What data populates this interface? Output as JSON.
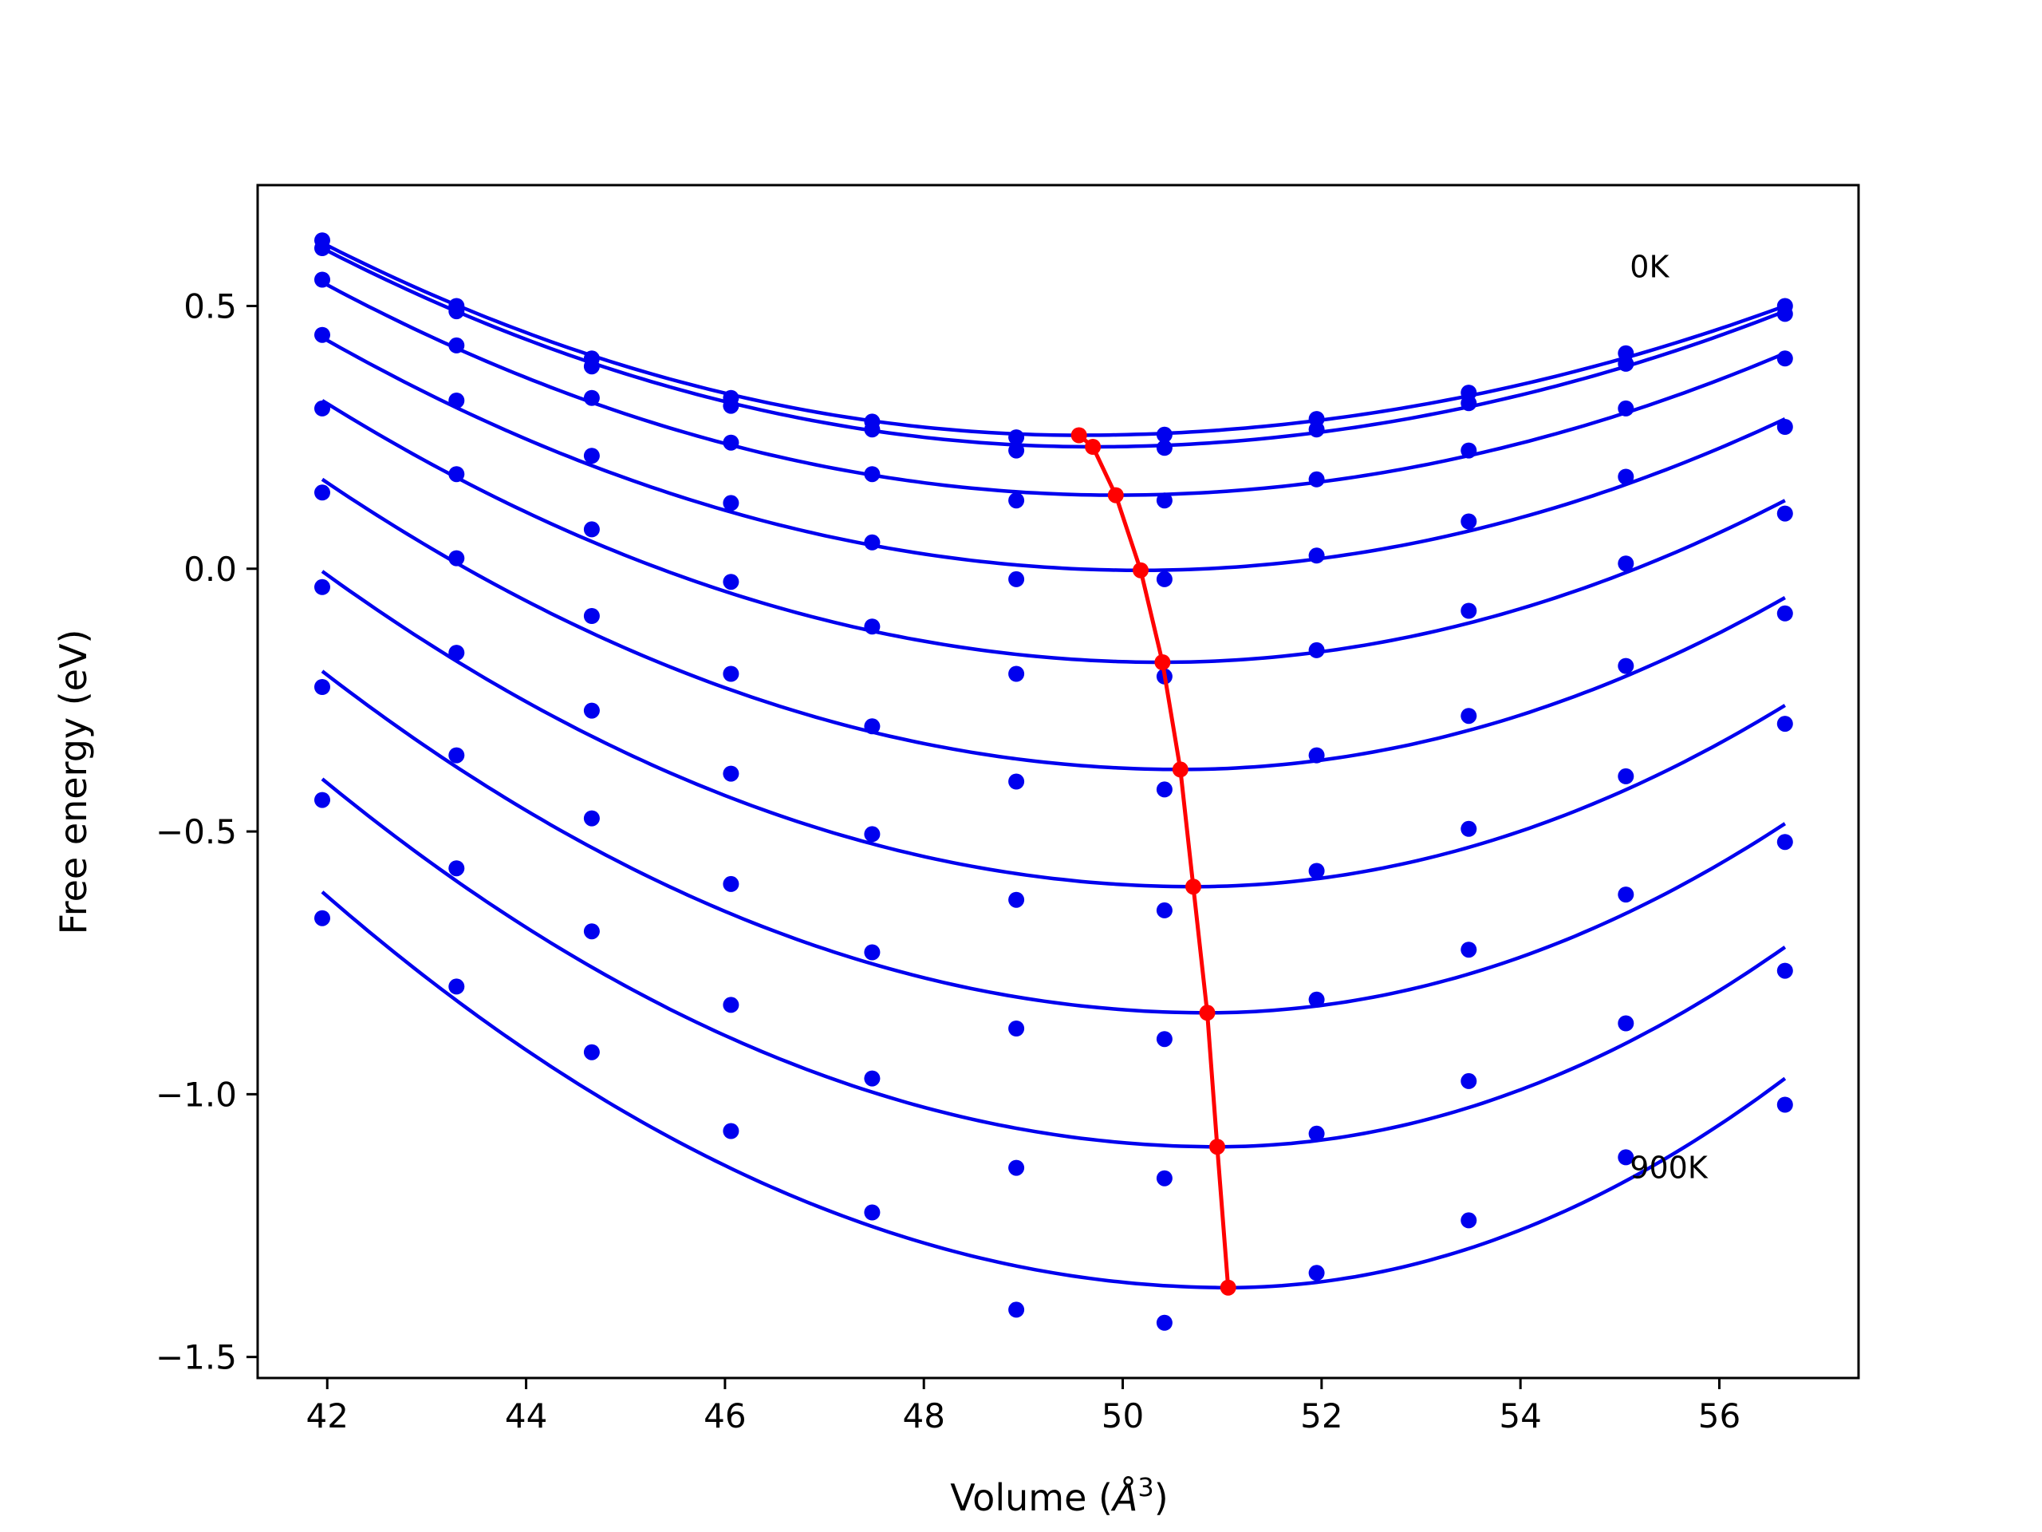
{
  "chart_data": {
    "type": "scatter",
    "title": "",
    "xlabel": "Volume (",
    "xlabel_symbol": "Å",
    "xlabel_exp": "3",
    "xlabel_close": ")",
    "ylabel": "Free energy (eV)",
    "xlim": [
      41.3,
      57.4
    ],
    "ylim": [
      -1.54,
      0.73
    ],
    "x_ticks": [
      42,
      44,
      46,
      48,
      50,
      52,
      54,
      56
    ],
    "x_tick_labels": [
      "42",
      "44",
      "46",
      "48",
      "50",
      "52",
      "54",
      "56"
    ],
    "y_ticks": [
      0.5,
      0.0,
      -0.5,
      -1.0,
      -1.5
    ],
    "y_tick_labels": [
      "0.5",
      "0.0",
      "−0.5",
      "−1.0",
      "−1.5"
    ],
    "grid": false,
    "colors": {
      "data": "#0000ee",
      "minima": "#ff0000"
    },
    "annotations": [
      {
        "text": "0K",
        "x": 55.1,
        "y": 0.555
      },
      {
        "text": "900K",
        "x": 55.1,
        "y": -1.16
      }
    ],
    "volumes": [
      41.95,
      43.3,
      44.66,
      46.06,
      47.48,
      48.93,
      50.42,
      51.95,
      53.48,
      55.06,
      56.66
    ],
    "series": [
      {
        "points": [
          0.625,
          0.5,
          0.4,
          0.325,
          0.28,
          0.25,
          0.255,
          0.285,
          0.335,
          0.41,
          0.5
        ],
        "fit": {
          "min_x": 49.56,
          "min_y": 0.254,
          "left_y": 0.62,
          "right_y": 0.5
        }
      },
      {
        "points": [
          0.61,
          0.49,
          0.385,
          0.31,
          0.265,
          0.225,
          0.23,
          0.265,
          0.315,
          0.39,
          0.485
        ],
        "fit": {
          "min_x": 49.7,
          "min_y": 0.232,
          "left_y": 0.61,
          "right_y": 0.49
        }
      },
      {
        "points": [
          0.55,
          0.425,
          0.325,
          0.24,
          0.18,
          0.13,
          0.13,
          0.17,
          0.225,
          0.305,
          0.4
        ],
        "fit": {
          "min_x": 49.93,
          "min_y": 0.14,
          "left_y": 0.545,
          "right_y": 0.41
        }
      },
      {
        "points": [
          0.445,
          0.32,
          0.215,
          0.125,
          0.05,
          -0.02,
          -0.02,
          0.025,
          0.09,
          0.175,
          0.27
        ],
        "fit": {
          "min_x": 50.18,
          "min_y": -0.003,
          "left_y": 0.44,
          "right_y": 0.285
        }
      },
      {
        "points": [
          0.305,
          0.18,
          0.075,
          -0.025,
          -0.11,
          -0.2,
          -0.205,
          -0.155,
          -0.08,
          0.01,
          0.105
        ],
        "fit": {
          "min_x": 50.4,
          "min_y": -0.178,
          "left_y": 0.32,
          "right_y": 0.13
        }
      },
      {
        "points": [
          0.145,
          0.02,
          -0.09,
          -0.2,
          -0.3,
          -0.405,
          -0.42,
          -0.355,
          -0.28,
          -0.185,
          -0.085
        ],
        "fit": {
          "min_x": 50.58,
          "min_y": -0.382,
          "left_y": 0.17,
          "right_y": -0.055
        }
      },
      {
        "points": [
          -0.035,
          -0.16,
          -0.27,
          -0.39,
          -0.505,
          -0.63,
          -0.65,
          -0.575,
          -0.495,
          -0.395,
          -0.295
        ],
        "fit": {
          "min_x": 50.71,
          "min_y": -0.605,
          "left_y": -0.005,
          "right_y": -0.26
        }
      },
      {
        "points": [
          -0.225,
          -0.355,
          -0.475,
          -0.6,
          -0.73,
          -0.875,
          -0.895,
          -0.82,
          -0.725,
          -0.62,
          -0.52
        ],
        "fit": {
          "min_x": 50.85,
          "min_y": -0.845,
          "left_y": -0.195,
          "right_y": -0.485
        }
      },
      {
        "points": [
          -0.44,
          -0.57,
          -0.69,
          -0.83,
          -0.97,
          -1.14,
          -1.16,
          -1.075,
          -0.975,
          -0.865,
          -0.765
        ],
        "fit": {
          "min_x": 50.95,
          "min_y": -1.1,
          "left_y": -0.4,
          "right_y": -0.72
        }
      },
      {
        "points": [
          -0.665,
          -0.795,
          -0.92,
          -1.07,
          -1.225,
          -1.41,
          -1.435,
          -1.34,
          -1.24,
          -1.12,
          -1.02
        ],
        "fit": {
          "min_x": 51.06,
          "min_y": -1.368,
          "left_y": -0.615,
          "right_y": -0.97
        }
      }
    ],
    "minima": {
      "x": [
        49.56,
        49.7,
        49.93,
        50.18,
        50.4,
        50.58,
        50.71,
        50.85,
        50.95,
        51.06
      ],
      "y": [
        0.254,
        0.232,
        0.14,
        -0.003,
        -0.178,
        -0.382,
        -0.605,
        -0.845,
        -1.1,
        -1.368
      ]
    }
  }
}
